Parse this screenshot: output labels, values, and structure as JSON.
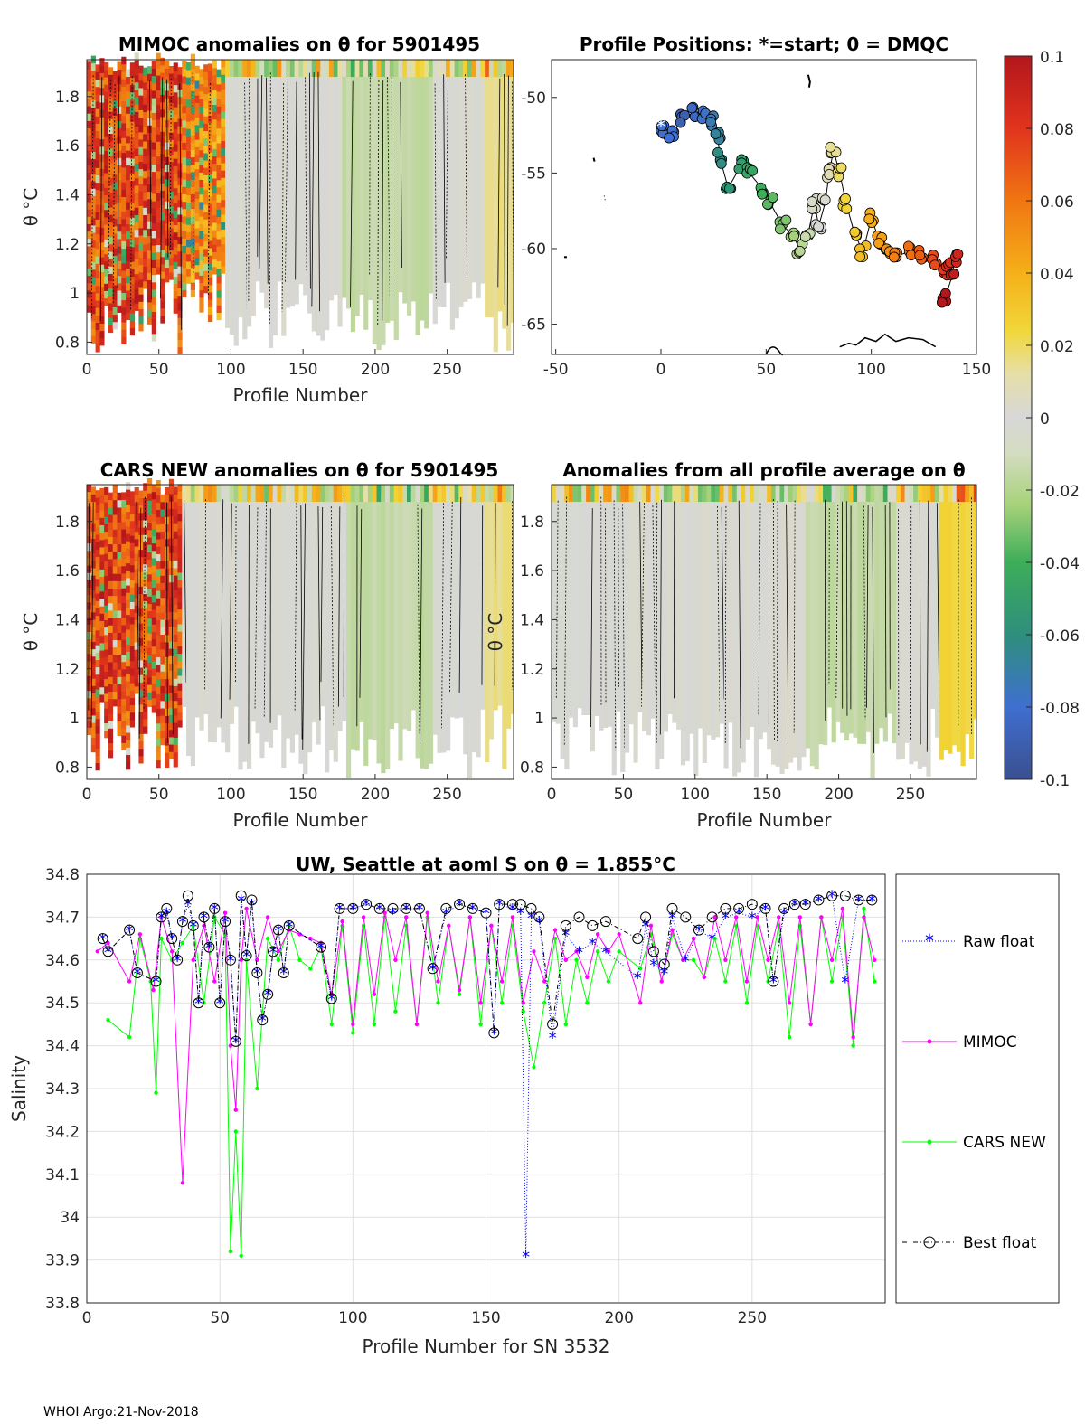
{
  "footer": "WHOI Argo:21-Nov-2018",
  "colorbar": {
    "ticks": [
      "0.1",
      "0.08",
      "0.06",
      "0.04",
      "0.02",
      "0",
      "-0.02",
      "-0.04",
      "-0.06",
      "-0.08",
      "-0.1"
    ],
    "range": [
      -0.1,
      0.1
    ]
  },
  "chart_data": [
    {
      "id": "mimoc",
      "type": "heatmap",
      "title": "MIMOC anomalies on θ  for 5901495",
      "xlabel": "Profile Number",
      "ylabel": "θ °C",
      "xlim": [
        0,
        296
      ],
      "ylim": [
        0.75,
        1.95
      ],
      "xticks": [
        "0",
        "50",
        "100",
        "150",
        "200",
        "250"
      ],
      "yticks": [
        "0.8",
        "1",
        "1.2",
        "1.4",
        "1.6",
        "1.8"
      ],
      "segments": [
        {
          "x0": 0,
          "x1": 65,
          "anomaly": 0.1
        },
        {
          "x0": 65,
          "x1": 95,
          "anomaly": 0.08
        },
        {
          "x0": 95,
          "x1": 175,
          "anomaly": 0.0
        },
        {
          "x0": 175,
          "x1": 240,
          "anomaly": -0.015
        },
        {
          "x0": 240,
          "x1": 275,
          "anomaly": 0.0
        },
        {
          "x0": 275,
          "x1": 296,
          "anomaly": 0.015
        }
      ]
    },
    {
      "id": "positions",
      "type": "scatter",
      "title": "Profile Positions: *=start; 0 = DMQC",
      "xlim": [
        -52,
        150
      ],
      "ylim": [
        -67,
        -47.5
      ],
      "xticks": [
        "-50",
        "0",
        "50",
        "100",
        "150"
      ],
      "yticks": [
        "-50",
        "-55",
        "-60",
        "-65"
      ],
      "start": [
        0,
        -52
      ],
      "track": [
        [
          0,
          -52
        ],
        [
          5,
          -52.5
        ],
        [
          10,
          -51.5
        ],
        [
          15,
          -51
        ],
        [
          20,
          -51.2
        ],
        [
          25,
          -51.5
        ],
        [
          27,
          -52.5
        ],
        [
          28,
          -54
        ],
        [
          32,
          -56
        ],
        [
          38,
          -54.5
        ],
        [
          42,
          -55
        ],
        [
          48,
          -56
        ],
        [
          52,
          -57
        ],
        [
          58,
          -58.5
        ],
        [
          62,
          -59
        ],
        [
          66,
          -60
        ],
        [
          70,
          -59
        ],
        [
          73,
          -57
        ],
        [
          75,
          -58.5
        ],
        [
          78,
          -57
        ],
        [
          80,
          -55
        ],
        [
          82,
          -53.5
        ],
        [
          85,
          -55
        ],
        [
          88,
          -57
        ],
        [
          92,
          -59
        ],
        [
          96,
          -60.2
        ],
        [
          100,
          -58
        ],
        [
          104,
          -59.5
        ],
        [
          108,
          -60.2
        ],
        [
          112,
          -60.5
        ],
        [
          118,
          -60.2
        ],
        [
          124,
          -60.5
        ],
        [
          130,
          -60.8
        ],
        [
          135,
          -61.5
        ],
        [
          137,
          -61
        ],
        [
          140,
          -60.7
        ],
        [
          138,
          -62
        ],
        [
          135,
          -63.3
        ]
      ]
    },
    {
      "id": "cars",
      "type": "heatmap",
      "title": "CARS NEW anomalies on θ for 5901495",
      "xlabel": "Profile Number",
      "ylabel": "θ °C",
      "xlim": [
        0,
        296
      ],
      "ylim": [
        0.75,
        1.95
      ],
      "xticks": [
        "0",
        "50",
        "100",
        "150",
        "200",
        "250"
      ],
      "yticks": [
        "0.8",
        "1",
        "1.2",
        "1.4",
        "1.6",
        "1.8"
      ],
      "segments": [
        {
          "x0": 0,
          "x1": 65,
          "anomaly": 0.1
        },
        {
          "x0": 65,
          "x1": 180,
          "anomaly": 0.0
        },
        {
          "x0": 180,
          "x1": 240,
          "anomaly": -0.015
        },
        {
          "x0": 240,
          "x1": 275,
          "anomaly": 0.0
        },
        {
          "x0": 275,
          "x1": 296,
          "anomaly": 0.015
        }
      ]
    },
    {
      "id": "avg",
      "type": "heatmap",
      "title": "Anomalies from all profile average on θ",
      "xlabel": "Profile Number",
      "ylabel": "θ °C",
      "xlim": [
        0,
        296
      ],
      "ylim": [
        0.75,
        1.95
      ],
      "xticks": [
        "0",
        "50",
        "100",
        "150",
        "200",
        "250"
      ],
      "yticks": [
        "0.8",
        "1",
        "1.2",
        "1.4",
        "1.6",
        "1.8"
      ],
      "segments": [
        {
          "x0": 0,
          "x1": 175,
          "anomaly": 0.0
        },
        {
          "x0": 175,
          "x1": 240,
          "anomaly": -0.015
        },
        {
          "x0": 240,
          "x1": 270,
          "anomaly": 0.0
        },
        {
          "x0": 270,
          "x1": 296,
          "anomaly": 0.025
        }
      ]
    },
    {
      "id": "salinity",
      "type": "line",
      "title": "UW, Seattle at aoml S on θ = 1.855°C",
      "xlabel": "Profile Number for SN 3532",
      "ylabel": "Salinity",
      "xlim": [
        0,
        300
      ],
      "ylim": [
        33.8,
        34.8
      ],
      "xticks": [
        "0",
        "50",
        "100",
        "150",
        "200",
        "250"
      ],
      "yticks": [
        "34.8",
        "34.7",
        "34.6",
        "34.5",
        "34.4",
        "34.3",
        "34.2",
        "34.1",
        "34",
        "33.9",
        "33.8"
      ],
      "legend": [
        "Raw float",
        "MIMOC",
        "CARS NEW",
        "Best float"
      ],
      "series": [
        {
          "name": "Raw float",
          "color": "#0000ff",
          "x": [
            6,
            8,
            16,
            19,
            26,
            28,
            30,
            32,
            34,
            36,
            38,
            40,
            42,
            44,
            46,
            48,
            50,
            52,
            54,
            56,
            58,
            60,
            62,
            64,
            66,
            68,
            70,
            72,
            74,
            76,
            88,
            92,
            95,
            100,
            105,
            110,
            115,
            120,
            125,
            130,
            135,
            140,
            145,
            150,
            153,
            155,
            160,
            163,
            165,
            167,
            170,
            175,
            180,
            185,
            190,
            195,
            207,
            210,
            213,
            217,
            220,
            225,
            230,
            235,
            240,
            245,
            250,
            255,
            258,
            262,
            266,
            270,
            275,
            280,
            285,
            290,
            295
          ],
          "y": [
            34.65,
            34.62,
            34.67,
            34.57,
            34.55,
            34.7,
            34.71,
            34.65,
            34.6,
            34.69,
            34.73,
            34.68,
            34.5,
            34.7,
            34.63,
            34.72,
            34.5,
            34.69,
            34.6,
            34.41,
            34.74,
            34.61,
            34.73,
            34.57,
            34.46,
            34.52,
            34.62,
            34.67,
            34.57,
            34.68,
            34.63,
            34.51,
            34.72,
            34.72,
            34.73,
            34.72,
            34.71,
            34.72,
            34.72,
            34.58,
            34.71,
            34.73,
            34.72,
            34.71,
            34.43,
            34.73,
            34.72,
            34.71,
            33.91,
            34.7,
            34.69,
            34.42,
            34.66,
            34.62,
            34.64,
            34.62,
            34.56,
            34.68,
            34.59,
            34.57,
            34.7,
            34.6,
            34.67,
            34.65,
            34.7,
            34.71,
            34.7,
            34.72,
            34.55,
            34.71,
            34.73,
            34.73,
            34.74,
            34.75,
            34.55,
            34.74,
            34.74
          ]
        },
        {
          "name": "MIMOC",
          "color": "#ff00ff",
          "x": [
            4,
            8,
            16,
            20,
            25,
            28,
            32,
            36,
            40,
            44,
            48,
            52,
            54,
            56,
            58,
            60,
            64,
            68,
            72,
            76,
            80,
            84,
            88,
            92,
            96,
            100,
            104,
            108,
            112,
            116,
            120,
            124,
            128,
            132,
            136,
            140,
            144,
            148,
            152,
            156,
            160,
            164,
            168,
            172,
            176,
            180,
            184,
            188,
            192,
            196,
            200,
            208,
            212,
            216,
            220,
            224,
            228,
            232,
            236,
            240,
            244,
            248,
            252,
            256,
            260,
            264,
            268,
            272,
            276,
            280,
            284,
            288,
            292,
            296
          ],
          "y": [
            34.62,
            34.64,
            34.55,
            34.66,
            34.53,
            34.7,
            34.62,
            34.08,
            34.6,
            34.68,
            34.55,
            34.71,
            34.4,
            34.25,
            34.6,
            34.72,
            34.6,
            34.7,
            34.62,
            34.67,
            34.66,
            34.65,
            34.64,
            34.52,
            34.69,
            34.45,
            34.7,
            34.52,
            34.71,
            34.6,
            34.7,
            34.45,
            34.71,
            34.55,
            34.68,
            34.53,
            34.7,
            34.5,
            34.68,
            34.55,
            34.7,
            34.5,
            34.62,
            34.55,
            34.67,
            34.6,
            34.62,
            34.56,
            34.66,
            34.62,
            34.66,
            34.5,
            34.68,
            34.55,
            34.67,
            34.6,
            34.65,
            34.56,
            34.7,
            34.6,
            34.7,
            34.55,
            34.7,
            34.6,
            34.7,
            34.5,
            34.7,
            34.45,
            34.7,
            34.6,
            34.72,
            34.42,
            34.7,
            34.6
          ]
        },
        {
          "name": "CARS NEW",
          "color": "#00ff00",
          "x": [
            8,
            16,
            20,
            24,
            26,
            28,
            32,
            36,
            40,
            44,
            48,
            52,
            54,
            56,
            58,
            60,
            64,
            68,
            72,
            76,
            80,
            84,
            88,
            92,
            96,
            100,
            104,
            108,
            112,
            116,
            120,
            124,
            128,
            132,
            136,
            140,
            144,
            148,
            152,
            156,
            160,
            164,
            168,
            172,
            176,
            180,
            184,
            188,
            192,
            196,
            200,
            208,
            212,
            216,
            220,
            224,
            228,
            232,
            236,
            240,
            244,
            248,
            252,
            256,
            260,
            264,
            268,
            272,
            276,
            280,
            284,
            288,
            292,
            296
          ],
          "y": [
            34.46,
            34.42,
            34.65,
            34.55,
            34.29,
            34.65,
            34.6,
            34.64,
            34.68,
            34.5,
            34.7,
            34.66,
            33.92,
            34.2,
            33.91,
            34.6,
            34.3,
            34.65,
            34.6,
            34.68,
            34.6,
            34.58,
            34.63,
            34.45,
            34.68,
            34.43,
            34.68,
            34.45,
            34.7,
            34.48,
            34.68,
            34.45,
            34.7,
            34.5,
            34.68,
            34.52,
            34.7,
            34.45,
            34.68,
            34.5,
            34.68,
            34.48,
            34.35,
            34.5,
            34.65,
            34.45,
            34.6,
            34.5,
            34.62,
            34.55,
            34.62,
            34.58,
            34.66,
            34.55,
            34.66,
            34.6,
            34.6,
            34.56,
            34.65,
            34.55,
            34.68,
            34.5,
            34.68,
            34.55,
            34.68,
            34.42,
            34.68,
            34.45,
            34.7,
            34.55,
            34.7,
            34.4,
            34.72,
            34.55
          ]
        },
        {
          "name": "Best float",
          "color": "#000000",
          "x": [
            6,
            8,
            16,
            19,
            26,
            28,
            30,
            32,
            34,
            36,
            38,
            40,
            42,
            44,
            46,
            48,
            50,
            52,
            54,
            56,
            58,
            60,
            62,
            64,
            66,
            68,
            70,
            72,
            74,
            76,
            88,
            92,
            95,
            100,
            105,
            110,
            115,
            120,
            125,
            130,
            135,
            140,
            145,
            150,
            153,
            155,
            160,
            163,
            167,
            170,
            175,
            180,
            185,
            190,
            195,
            207,
            210,
            213,
            217,
            220,
            225,
            230,
            235,
            240,
            245,
            250,
            255,
            258,
            262,
            266,
            270,
            275,
            280,
            285,
            290,
            295
          ],
          "y": [
            34.65,
            34.62,
            34.67,
            34.57,
            34.55,
            34.7,
            34.72,
            34.65,
            34.6,
            34.69,
            34.75,
            34.68,
            34.5,
            34.7,
            34.63,
            34.72,
            34.5,
            34.69,
            34.6,
            34.41,
            34.75,
            34.61,
            34.74,
            34.57,
            34.46,
            34.52,
            34.62,
            34.67,
            34.57,
            34.68,
            34.63,
            34.51,
            34.72,
            34.72,
            34.73,
            34.72,
            34.72,
            34.72,
            34.72,
            34.58,
            34.72,
            34.73,
            34.72,
            34.71,
            34.43,
            34.73,
            34.73,
            34.73,
            34.72,
            34.7,
            34.45,
            34.68,
            34.7,
            34.68,
            34.69,
            34.65,
            34.7,
            34.62,
            34.59,
            34.72,
            34.7,
            34.67,
            34.7,
            34.72,
            34.72,
            34.73,
            34.72,
            34.55,
            34.72,
            34.73,
            34.73,
            34.74,
            34.75,
            34.75,
            34.74,
            34.74
          ]
        }
      ]
    }
  ]
}
